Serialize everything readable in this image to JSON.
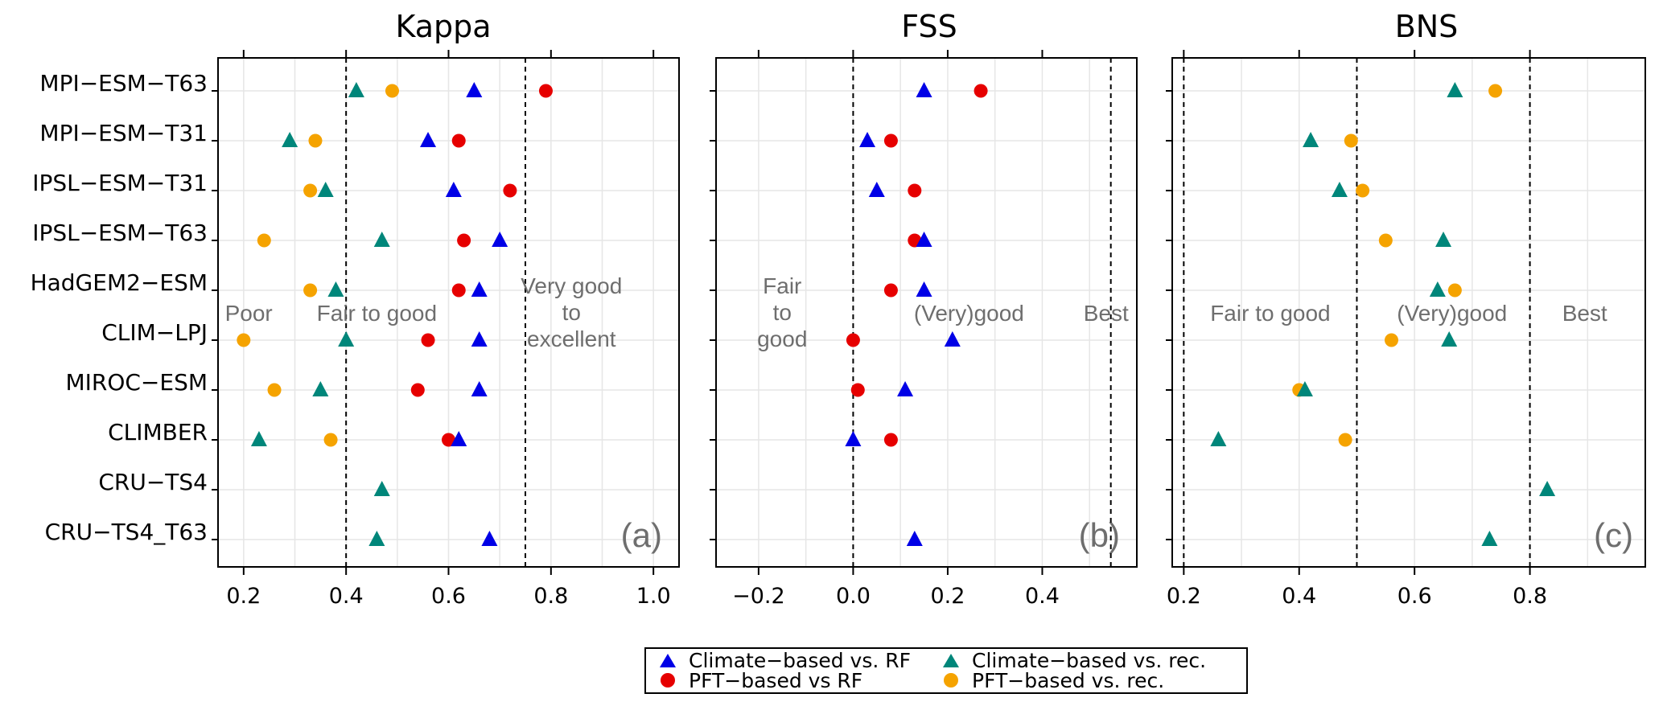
{
  "chart_data": {
    "type": "scatter",
    "models": [
      "MPI−ESM−T63",
      "MPI−ESM−T31",
      "IPSL−ESM−T31",
      "IPSL−ESM−T63",
      "HadGEM2−ESM",
      "CLIM−LPJ",
      "MIROC−ESM",
      "CLIMBER",
      "CRU−TS4",
      "CRU−TS4_T63"
    ],
    "series_styles": [
      {
        "key": "climate_rf",
        "name": "Climate−based vs. RF",
        "marker": "triangle",
        "color": "#0000e6"
      },
      {
        "key": "pft_rf",
        "name": "PFT−based vs RF",
        "marker": "circle",
        "color": "#e60000"
      },
      {
        "key": "climate_rec",
        "name": "Climate−based vs. rec.",
        "marker": "triangle",
        "color": "#00867a"
      },
      {
        "key": "pft_rec",
        "name": "PFT−based vs. rec.",
        "marker": "circle",
        "color": "#f5a300"
      }
    ],
    "panels": [
      {
        "title": "Kappa",
        "letter": "(a)",
        "xlim": [
          0.15,
          1.05
        ],
        "ticks": [
          0.2,
          0.4,
          0.6,
          0.8,
          1.0
        ],
        "tick_labels": [
          "0.2",
          "0.4",
          "0.6",
          "0.8",
          "1.0"
        ],
        "thresholds": [
          0.4,
          0.75
        ],
        "zone_labels": [
          {
            "lines": [
              "Poor"
            ],
            "x": 0.21
          },
          {
            "lines": [
              "Fair to good"
            ],
            "x": 0.46
          },
          {
            "lines": [
              "Very good",
              "to",
              "excellent"
            ],
            "x": 0.84
          }
        ],
        "series": {
          "climate_rf": [
            0.65,
            0.56,
            0.61,
            0.7,
            0.66,
            0.66,
            0.66,
            0.62,
            null,
            0.68
          ],
          "pft_rf": [
            0.79,
            0.62,
            0.72,
            0.63,
            0.62,
            0.56,
            0.54,
            0.6,
            null,
            null
          ],
          "climate_rec": [
            0.42,
            0.29,
            0.36,
            0.47,
            0.38,
            0.4,
            0.35,
            0.23,
            0.47,
            0.46
          ],
          "pft_rec": [
            0.49,
            0.34,
            0.33,
            0.24,
            0.33,
            0.2,
            0.26,
            0.37,
            null,
            null
          ]
        }
      },
      {
        "title": "FSS",
        "letter": "(b)",
        "xlim": [
          -0.29,
          0.6
        ],
        "ticks": [
          -0.2,
          0.0,
          0.2,
          0.4
        ],
        "tick_labels": [
          "−0.2",
          "0.0",
          "0.2",
          "0.4"
        ],
        "thresholds": [
          0.0,
          0.545
        ],
        "zone_labels": [
          {
            "lines": [
              "Fair",
              "to",
              "good"
            ],
            "x": -0.15
          },
          {
            "lines": [
              "(Very)good"
            ],
            "x": 0.245
          },
          {
            "lines": [
              "Best"
            ],
            "x": 0.535
          }
        ],
        "series": {
          "climate_rf": [
            0.15,
            0.03,
            0.05,
            0.15,
            0.15,
            0.21,
            0.11,
            0.0,
            null,
            0.13
          ],
          "pft_rf": [
            0.27,
            0.08,
            0.13,
            0.13,
            0.08,
            0.0,
            0.01,
            0.08,
            null,
            null
          ],
          "climate_rec": [
            null,
            null,
            null,
            null,
            null,
            null,
            null,
            null,
            null,
            null
          ],
          "pft_rec": [
            null,
            null,
            null,
            null,
            null,
            null,
            null,
            null,
            null,
            null
          ]
        }
      },
      {
        "title": "BNS",
        "letter": "(c)",
        "xlim": [
          0.18,
          1.0
        ],
        "ticks": [
          0.2,
          0.4,
          0.6,
          0.8
        ],
        "tick_labels": [
          "0.2",
          "0.4",
          "0.6",
          "0.8"
        ],
        "thresholds": [
          0.2,
          0.5,
          0.8
        ],
        "zone_labels": [
          {
            "lines": [
              "Fair to good"
            ],
            "x": 0.35
          },
          {
            "lines": [
              "(Very)good"
            ],
            "x": 0.665
          },
          {
            "lines": [
              "Best"
            ],
            "x": 0.895
          }
        ],
        "series": {
          "climate_rf": [
            null,
            null,
            null,
            null,
            null,
            null,
            null,
            null,
            null,
            null
          ],
          "pft_rf": [
            null,
            null,
            null,
            null,
            null,
            null,
            null,
            null,
            null,
            null
          ],
          "climate_rec": [
            0.67,
            0.42,
            0.47,
            0.65,
            0.64,
            0.66,
            0.41,
            0.26,
            0.83,
            0.73
          ],
          "pft_rec": [
            0.74,
            0.49,
            0.51,
            0.55,
            0.67,
            0.56,
            0.4,
            0.48,
            null,
            null
          ]
        }
      }
    ],
    "legend": {
      "position": "bottom-center",
      "entries": [
        "Climate−based vs. RF",
        "Climate−based vs. rec.",
        "PFT−based vs RF",
        "PFT−based vs. rec."
      ]
    }
  }
}
